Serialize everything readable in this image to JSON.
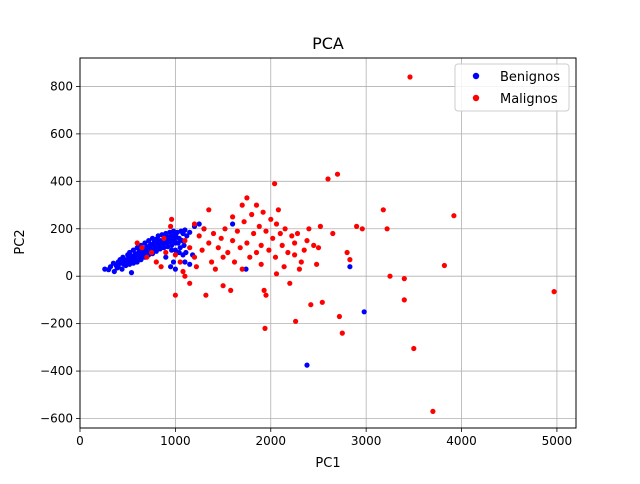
{
  "chart_data": {
    "type": "scatter",
    "title": "PCA",
    "xlabel": "PC1",
    "ylabel": "PC2",
    "xlim": [
      0,
      5200
    ],
    "ylim": [
      -640,
      920
    ],
    "xticks": [
      0,
      1000,
      2000,
      3000,
      4000,
      5000
    ],
    "yticks": [
      -600,
      -400,
      -200,
      0,
      200,
      400,
      600,
      800
    ],
    "grid": true,
    "legend_position": "top-right",
    "series": [
      {
        "name": "Benignos",
        "color": "#0000ff",
        "points": [
          [
            260,
            30
          ],
          [
            300,
            28
          ],
          [
            320,
            40
          ],
          [
            350,
            55
          ],
          [
            380,
            45
          ],
          [
            400,
            60
          ],
          [
            420,
            70
          ],
          [
            450,
            80
          ],
          [
            470,
            65
          ],
          [
            500,
            90
          ],
          [
            520,
            100
          ],
          [
            540,
            85
          ],
          [
            560,
            110
          ],
          [
            580,
            95
          ],
          [
            600,
            120
          ],
          [
            620,
            105
          ],
          [
            640,
            130
          ],
          [
            660,
            115
          ],
          [
            680,
            140
          ],
          [
            700,
            125
          ],
          [
            720,
            150
          ],
          [
            740,
            135
          ],
          [
            760,
            160
          ],
          [
            780,
            145
          ],
          [
            800,
            155
          ],
          [
            820,
            170
          ],
          [
            840,
            150
          ],
          [
            860,
            175
          ],
          [
            880,
            160
          ],
          [
            900,
            180
          ],
          [
            920,
            165
          ],
          [
            940,
            185
          ],
          [
            960,
            170
          ],
          [
            980,
            190
          ],
          [
            1000,
            175
          ],
          [
            1020,
            185
          ],
          [
            1040,
            160
          ],
          [
            1060,
            190
          ],
          [
            1080,
            180
          ],
          [
            1100,
            195
          ],
          [
            1120,
            170
          ],
          [
            1150,
            185
          ],
          [
            1200,
            210
          ],
          [
            1250,
            220
          ],
          [
            1300,
            200
          ],
          [
            400,
            40
          ],
          [
            430,
            55
          ],
          [
            460,
            50
          ],
          [
            490,
            70
          ],
          [
            510,
            60
          ],
          [
            530,
            75
          ],
          [
            550,
            65
          ],
          [
            570,
            80
          ],
          [
            590,
            70
          ],
          [
            610,
            90
          ],
          [
            630,
            80
          ],
          [
            650,
            100
          ],
          [
            670,
            90
          ],
          [
            690,
            110
          ],
          [
            710,
            100
          ],
          [
            730,
            120
          ],
          [
            750,
            110
          ],
          [
            770,
            130
          ],
          [
            790,
            120
          ],
          [
            810,
            140
          ],
          [
            830,
            130
          ],
          [
            850,
            145
          ],
          [
            870,
            135
          ],
          [
            890,
            150
          ],
          [
            910,
            140
          ],
          [
            930,
            155
          ],
          [
            950,
            145
          ],
          [
            970,
            160
          ],
          [
            990,
            150
          ],
          [
            1010,
            165
          ],
          [
            1030,
            140
          ],
          [
            1050,
            120
          ],
          [
            1070,
            150
          ],
          [
            1090,
            130
          ],
          [
            1110,
            100
          ],
          [
            360,
            20
          ],
          [
            390,
            35
          ],
          [
            440,
            30
          ],
          [
            480,
            45
          ],
          [
            520,
            50
          ],
          [
            560,
            55
          ],
          [
            600,
            60
          ],
          [
            640,
            70
          ],
          [
            680,
            80
          ],
          [
            720,
            90
          ],
          [
            760,
            95
          ],
          [
            800,
            105
          ],
          [
            840,
            115
          ],
          [
            880,
            120
          ],
          [
            920,
            125
          ],
          [
            960,
            130
          ],
          [
            1000,
            110
          ],
          [
            1040,
            100
          ],
          [
            1080,
            90
          ],
          [
            980,
            60
          ],
          [
            540,
            15
          ],
          [
            900,
            80
          ],
          [
            950,
            40
          ],
          [
            1000,
            30
          ],
          [
            1100,
            60
          ],
          [
            1150,
            50
          ],
          [
            1180,
            90
          ],
          [
            1600,
            220
          ],
          [
            1000,
            140
          ],
          [
            960,
            110
          ],
          [
            1740,
            30
          ],
          [
            2830,
            40
          ],
          [
            2980,
            -150
          ],
          [
            2380,
            -375
          ]
        ]
      },
      {
        "name": "Malignos",
        "color": "#ff0000",
        "points": [
          [
            600,
            140
          ],
          [
            650,
            120
          ],
          [
            700,
            80
          ],
          [
            750,
            100
          ],
          [
            800,
            60
          ],
          [
            850,
            40
          ],
          [
            880,
            160
          ],
          [
            900,
            100
          ],
          [
            950,
            210
          ],
          [
            960,
            240
          ],
          [
            1000,
            90
          ],
          [
            1000,
            -80
          ],
          [
            1050,
            60
          ],
          [
            1080,
            20
          ],
          [
            1100,
            150
          ],
          [
            1100,
            0
          ],
          [
            1150,
            120
          ],
          [
            1150,
            -30
          ],
          [
            1200,
            80
          ],
          [
            1200,
            220
          ],
          [
            1220,
            40
          ],
          [
            1250,
            170
          ],
          [
            1280,
            110
          ],
          [
            1300,
            200
          ],
          [
            1320,
            -80
          ],
          [
            1350,
            140
          ],
          [
            1350,
            280
          ],
          [
            1380,
            60
          ],
          [
            1400,
            180
          ],
          [
            1420,
            30
          ],
          [
            1450,
            120
          ],
          [
            1480,
            160
          ],
          [
            1500,
            80
          ],
          [
            1500,
            -40
          ],
          [
            1520,
            200
          ],
          [
            1550,
            100
          ],
          [
            1580,
            -60
          ],
          [
            1600,
            250
          ],
          [
            1600,
            150
          ],
          [
            1620,
            60
          ],
          [
            1650,
            190
          ],
          [
            1680,
            120
          ],
          [
            1700,
            300
          ],
          [
            1700,
            30
          ],
          [
            1720,
            230
          ],
          [
            1750,
            140
          ],
          [
            1750,
            330
          ],
          [
            1780,
            80
          ],
          [
            1800,
            260
          ],
          [
            1820,
            180
          ],
          [
            1850,
            100
          ],
          [
            1850,
            300
          ],
          [
            1880,
            210
          ],
          [
            1900,
            130
          ],
          [
            1900,
            50
          ],
          [
            1920,
            270
          ],
          [
            1930,
            -60
          ],
          [
            1950,
            190
          ],
          [
            1950,
            -80
          ],
          [
            1940,
            -220
          ],
          [
            1980,
            110
          ],
          [
            2000,
            240
          ],
          [
            2020,
            160
          ],
          [
            2040,
            390
          ],
          [
            2050,
            80
          ],
          [
            2060,
            220
          ],
          [
            2080,
            280
          ],
          [
            2100,
            180
          ],
          [
            2120,
            130
          ],
          [
            2140,
            40
          ],
          [
            2150,
            200
          ],
          [
            2180,
            100
          ],
          [
            2200,
            -30
          ],
          [
            2220,
            170
          ],
          [
            2250,
            90
          ],
          [
            2260,
            -190
          ],
          [
            2280,
            180
          ],
          [
            2300,
            30
          ],
          [
            2320,
            60
          ],
          [
            2350,
            110
          ],
          [
            2380,
            150
          ],
          [
            2400,
            200
          ],
          [
            2420,
            -120
          ],
          [
            2450,
            130
          ],
          [
            2480,
            50
          ],
          [
            2500,
            120
          ],
          [
            2520,
            210
          ],
          [
            2540,
            -110
          ],
          [
            2600,
            410
          ],
          [
            2650,
            180
          ],
          [
            2700,
            430
          ],
          [
            2720,
            -170
          ],
          [
            2750,
            -240
          ],
          [
            2800,
            100
          ],
          [
            2830,
            70
          ],
          [
            2900,
            210
          ],
          [
            2960,
            200
          ],
          [
            3180,
            280
          ],
          [
            3220,
            200
          ],
          [
            3250,
            0
          ],
          [
            3400,
            -10
          ],
          [
            3400,
            -100
          ],
          [
            3460,
            840
          ],
          [
            3500,
            -305
          ],
          [
            3700,
            -570
          ],
          [
            3820,
            45
          ],
          [
            3920,
            255
          ],
          [
            4970,
            -65
          ],
          [
            2060,
            10
          ],
          [
            2250,
            140
          ]
        ]
      }
    ]
  }
}
